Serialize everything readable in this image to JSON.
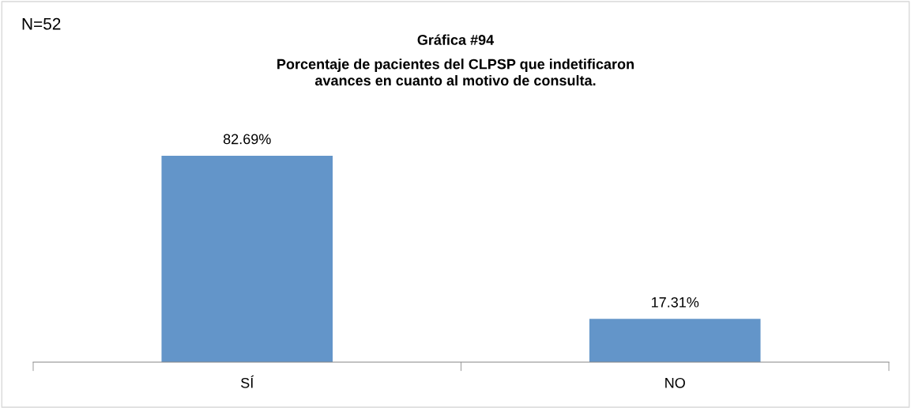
{
  "chart_data": {
    "type": "bar",
    "title": "Gráfica #94",
    "subtitle": "Porcentaje de pacientes del CLPSP que indetificaron\navances en cuanto al motivo de consulta.",
    "annotations": [
      "N=52"
    ],
    "categories": [
      "SÍ",
      "NO"
    ],
    "values": [
      82.69,
      17.31
    ],
    "value_labels": [
      "82.69%",
      "17.31%"
    ],
    "color": "#6395c9",
    "grid": false,
    "legend": false
  }
}
